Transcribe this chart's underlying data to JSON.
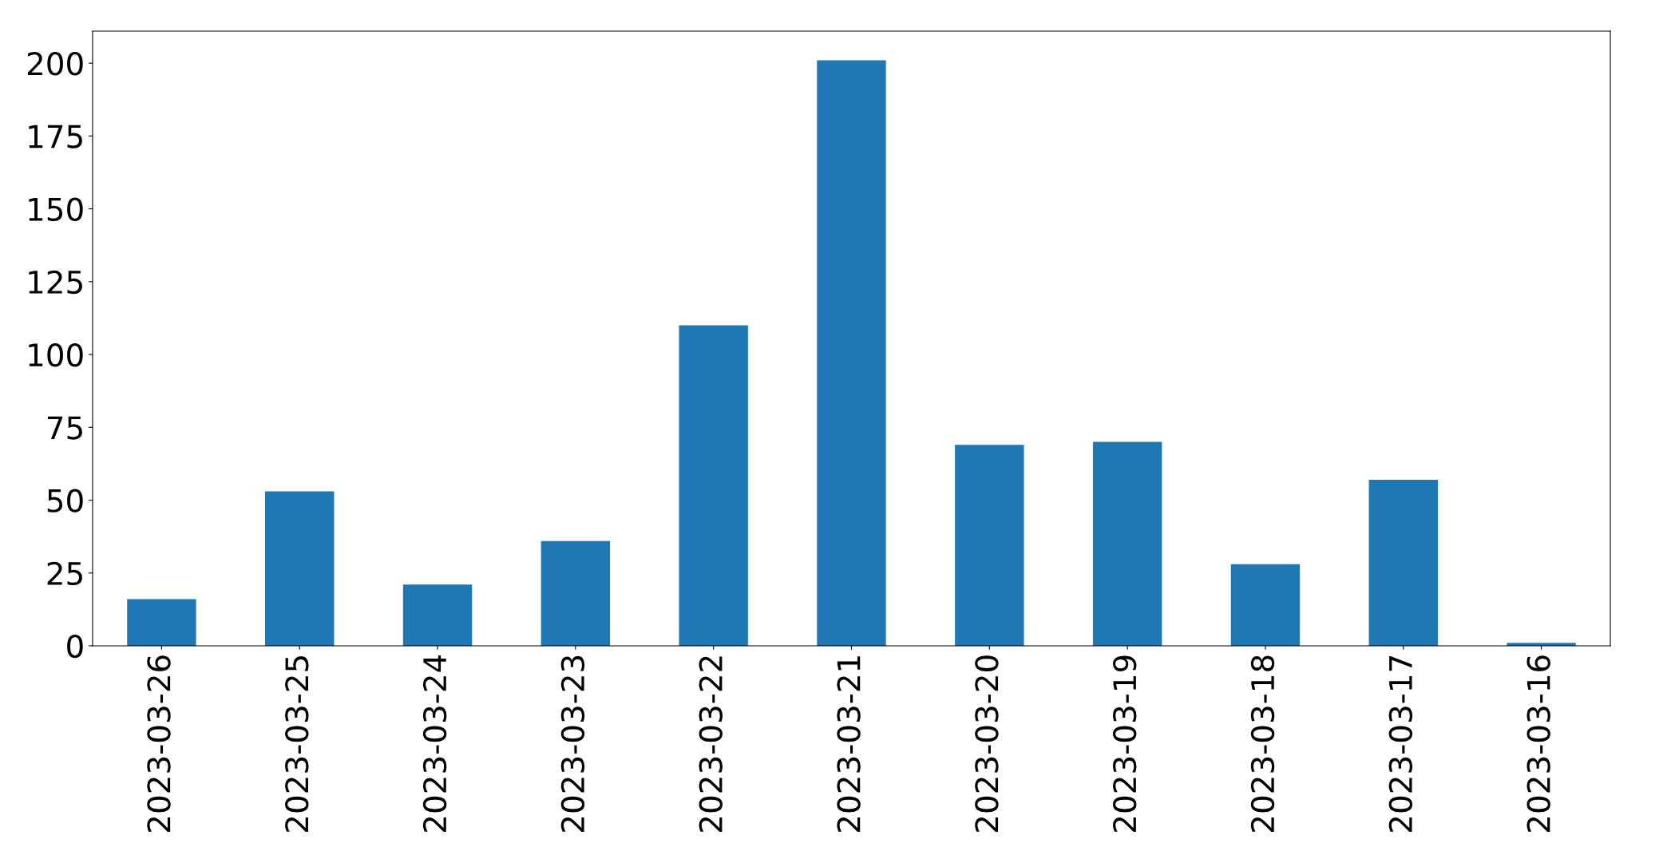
{
  "chart_data": {
    "type": "bar",
    "categories": [
      "2023-03-26",
      "2023-03-25",
      "2023-03-24",
      "2023-03-23",
      "2023-03-22",
      "2023-03-21",
      "2023-03-20",
      "2023-03-19",
      "2023-03-18",
      "2023-03-17",
      "2023-03-16"
    ],
    "values": [
      16,
      53,
      21,
      36,
      110,
      201,
      69,
      70,
      28,
      57,
      1
    ],
    "color": "#1f77b4",
    "ylim": [
      0,
      211
    ],
    "yticks": [
      0,
      25,
      50,
      75,
      100,
      125,
      150,
      175,
      200
    ],
    "grid": false,
    "legend": false
  }
}
